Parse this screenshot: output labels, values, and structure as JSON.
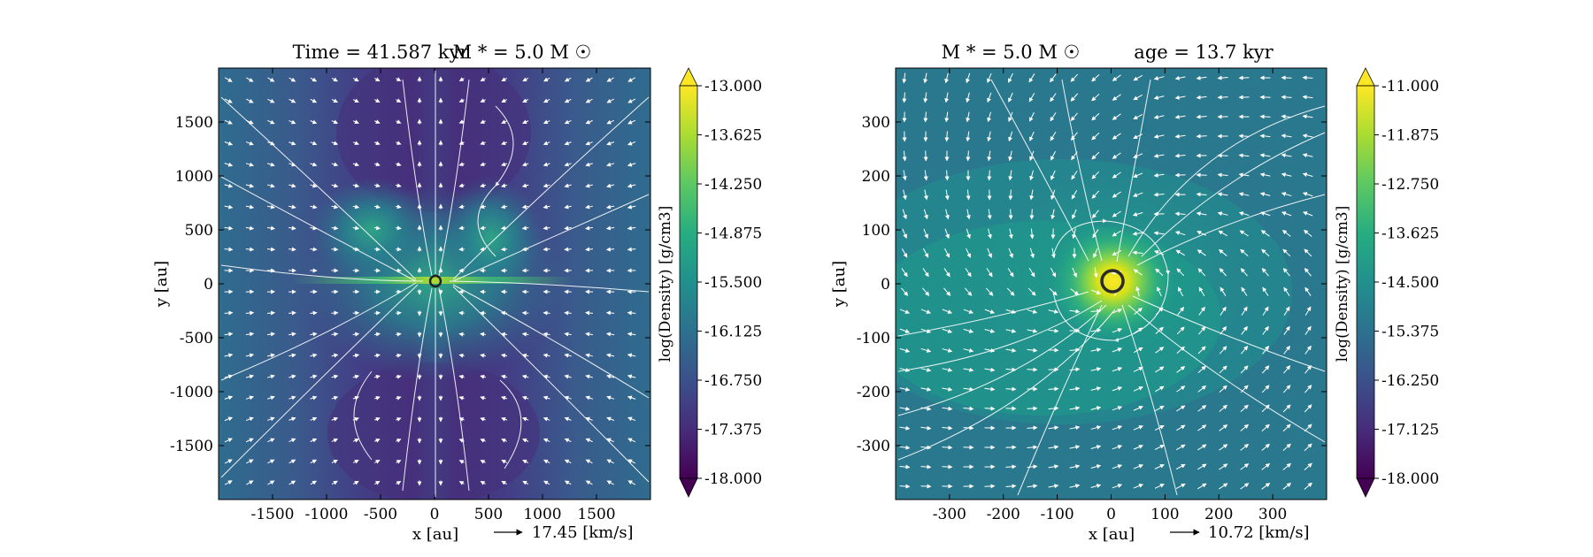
{
  "chart_data": [
    {
      "type": "heatmap",
      "title_left": "Time = 41.587 kyr",
      "title_right": "M * = 5.0 M ☉",
      "xlabel": "x [au]",
      "ylabel": "y [au]",
      "xlim": [
        -2000,
        2000
      ],
      "ylim": [
        -2000,
        2000
      ],
      "x_ticks": [
        "-1500",
        "-1000",
        "-500",
        "0",
        "500",
        "1000",
        "1500"
      ],
      "x_tick_values": [
        -1500,
        -1000,
        -500,
        0,
        500,
        1000,
        1500
      ],
      "y_ticks": [
        "1500",
        "1000",
        "500",
        "0",
        "-500",
        "-1000",
        "-1500"
      ],
      "y_tick_values": [
        1500,
        1000,
        500,
        0,
        -500,
        -1000,
        -1500
      ],
      "colorbar": {
        "label": "log(Density) [g/cm3]",
        "min": -18.0,
        "max": -13.0,
        "ticks": [
          "-13.000",
          "-13.625",
          "-14.250",
          "-14.875",
          "-15.500",
          "-16.125",
          "-16.750",
          "-17.375",
          "-18.000"
        ],
        "colormap": "viridis",
        "extend": "both"
      },
      "vector_key": "17.45 [km/s]",
      "overlay": "white streamlines and velocity arrows",
      "marker": "sink particle at origin"
    },
    {
      "type": "heatmap",
      "title_left": "M * = 5.0 M ☉",
      "title_right": "age = 13.7 kyr",
      "xlabel": "x [au]",
      "ylabel": "y [au]",
      "xlim": [
        -400,
        400
      ],
      "ylim": [
        -400,
        400
      ],
      "x_ticks": [
        "-300",
        "-200",
        "-100",
        "0",
        "100",
        "200",
        "300"
      ],
      "x_tick_values": [
        -300,
        -200,
        -100,
        0,
        100,
        200,
        300
      ],
      "y_ticks": [
        "300",
        "200",
        "100",
        "0",
        "-100",
        "-200",
        "-300"
      ],
      "y_tick_values": [
        300,
        200,
        100,
        0,
        -100,
        -200,
        -300
      ],
      "colorbar": {
        "label": "log(Density) [g/cm3]",
        "min": -18.0,
        "max": -11.0,
        "ticks": [
          "-11.000",
          "-11.875",
          "-12.750",
          "-13.625",
          "-14.500",
          "-15.375",
          "-16.250",
          "-17.125",
          "-18.000"
        ],
        "colormap": "viridis",
        "extend": "both"
      },
      "vector_key": "10.72 [km/s]",
      "overlay": "white streamlines and velocity arrows",
      "marker": "sink particle at origin"
    }
  ],
  "colors": {
    "viridis": [
      "#440154",
      "#472c7a",
      "#3b518b",
      "#2c718e",
      "#21908d",
      "#27ad81",
      "#5cc863",
      "#aadc32",
      "#fde725"
    ]
  }
}
